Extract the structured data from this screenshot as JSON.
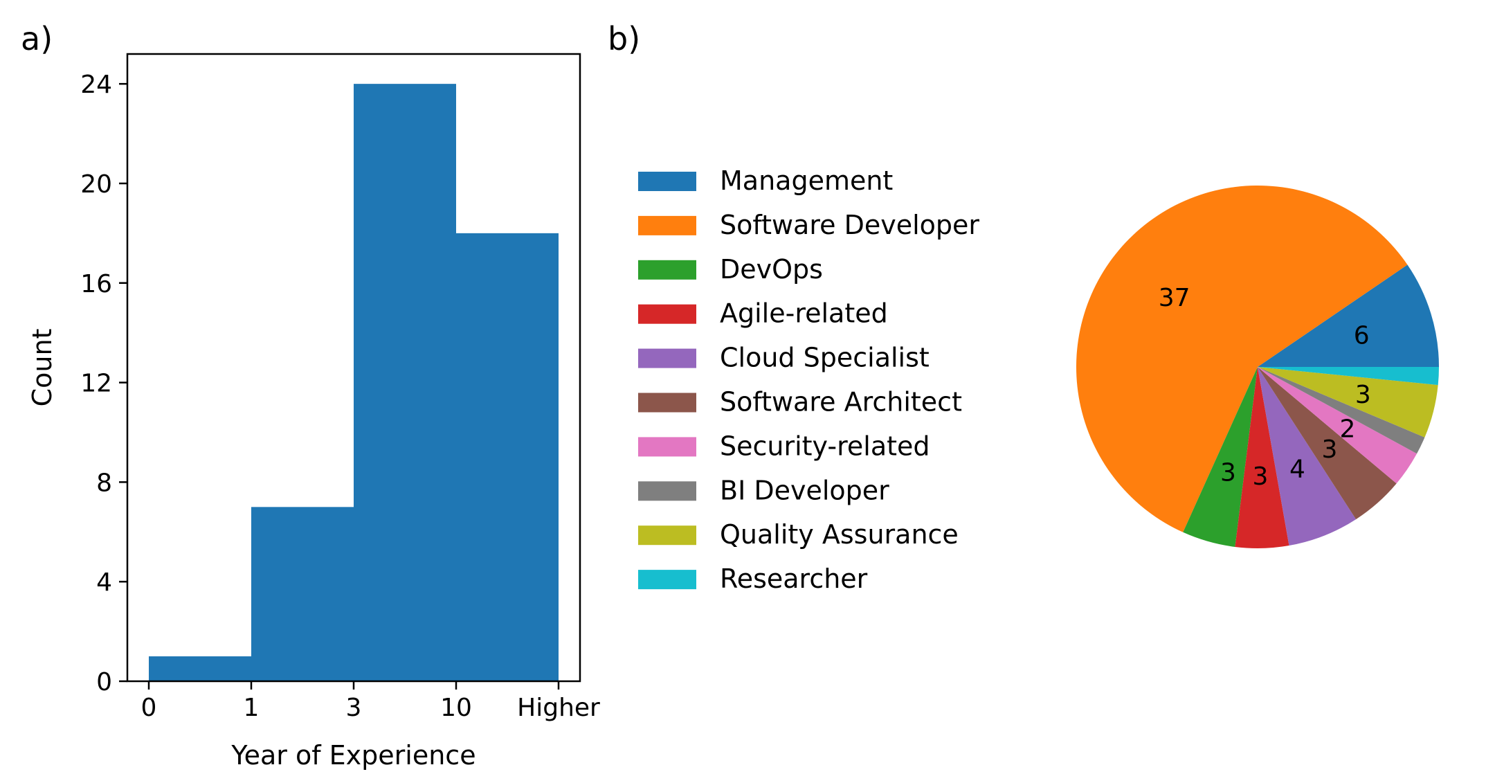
{
  "panels": {
    "a_label": "a)",
    "b_label": "b)"
  },
  "chart_data": [
    {
      "type": "bar",
      "subtype": "histogram",
      "categories": [
        "0-1",
        "1-3",
        "3-10",
        "10-Higher"
      ],
      "x_ticks": [
        "0",
        "1",
        "3",
        "10",
        "Higher"
      ],
      "values": [
        1,
        7,
        24,
        18
      ],
      "color": "#1f77b4",
      "title": "",
      "xlabel": "Year of Experience",
      "ylabel": "Count",
      "ylim": [
        0,
        25.2
      ],
      "y_ticks": [
        0,
        4,
        8,
        12,
        16,
        20,
        24
      ],
      "grid": false
    },
    {
      "type": "pie",
      "title": "",
      "legend_position": "left",
      "start_angle_deg": 0,
      "direction": "counterclockwise",
      "slices": [
        {
          "label": "Management",
          "value": 6,
          "color": "#1f77b4",
          "value_label": "6"
        },
        {
          "label": "Software Developer",
          "value": 37,
          "color": "#ff7f0e",
          "value_label": "37"
        },
        {
          "label": "DevOps",
          "value": 3,
          "color": "#2ca02c",
          "value_label": "3"
        },
        {
          "label": "Agile-related",
          "value": 3,
          "color": "#d62728",
          "value_label": "3"
        },
        {
          "label": "Cloud Specialist",
          "value": 4,
          "color": "#9467bd",
          "value_label": "4"
        },
        {
          "label": "Software Architect",
          "value": 3,
          "color": "#8c564b",
          "value_label": "3"
        },
        {
          "label": "Security-related",
          "value": 2,
          "color": "#e377c2",
          "value_label": "2"
        },
        {
          "label": "BI Developer",
          "value": 1,
          "color": "#7f7f7f",
          "value_label": ""
        },
        {
          "label": "Quality Assurance",
          "value": 3,
          "color": "#bcbd22",
          "value_label": "3"
        },
        {
          "label": "Researcher",
          "value": 1,
          "color": "#17becf",
          "value_label": ""
        }
      ]
    }
  ]
}
